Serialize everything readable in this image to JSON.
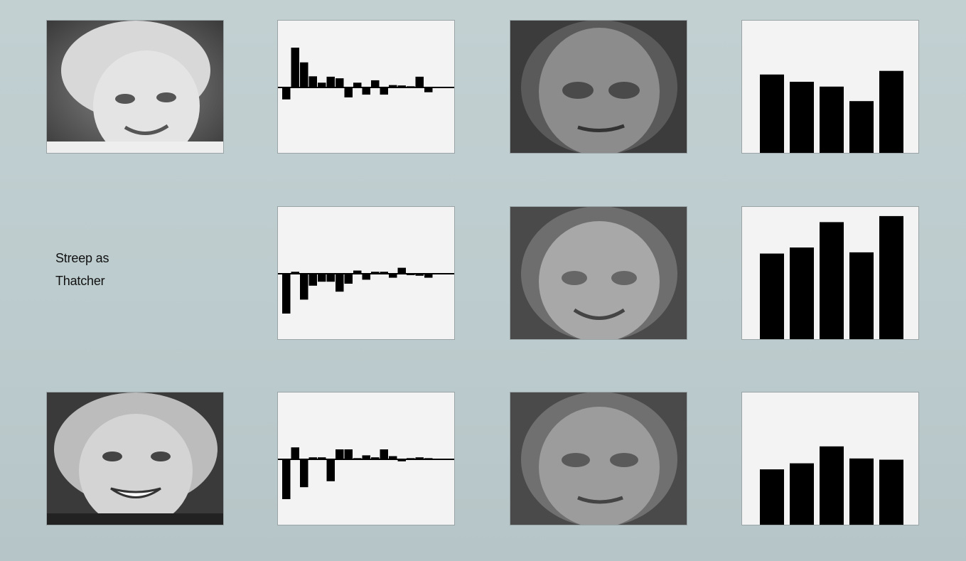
{
  "rows": [
    {
      "id": "thatcher",
      "label": "",
      "has_photo": true,
      "coefficients": [
        -0.3,
        1.0,
        0.63,
        0.28,
        0.12,
        0.27,
        0.23,
        -0.25,
        0.12,
        -0.18,
        0.18,
        -0.18,
        0.06,
        0.05,
        0.03,
        0.27,
        -0.12
      ],
      "weights": [
        0.66,
        0.6,
        0.56,
        0.44,
        0.69
      ]
    },
    {
      "id": "streep-as-thatcher",
      "label": [
        "Streep as",
        "Thatcher"
      ],
      "has_photo": false,
      "coefficients": [
        -1.0,
        0.05,
        -0.65,
        -0.3,
        -0.2,
        -0.2,
        -0.45,
        -0.25,
        0.08,
        -0.15,
        0.05,
        0.05,
        -0.1,
        0.15,
        0.0,
        -0.05,
        -0.1
      ],
      "weights": [
        0.72,
        0.77,
        0.98,
        0.73,
        1.03
      ]
    },
    {
      "id": "clinton",
      "label": "",
      "has_photo": true,
      "coefficients": [
        -1.0,
        0.3,
        -0.7,
        0.05,
        0.05,
        -0.55,
        0.25,
        0.25,
        0.03,
        0.1,
        0.05,
        0.25,
        0.08,
        -0.05,
        0.03,
        0.05,
        0.03
      ],
      "weights": [
        0.47,
        0.52,
        0.66,
        0.56,
        0.55
      ]
    }
  ],
  "colors": {
    "background": "#bfcdcf",
    "panel": "#f3f3f3",
    "bar": "#000000"
  }
}
